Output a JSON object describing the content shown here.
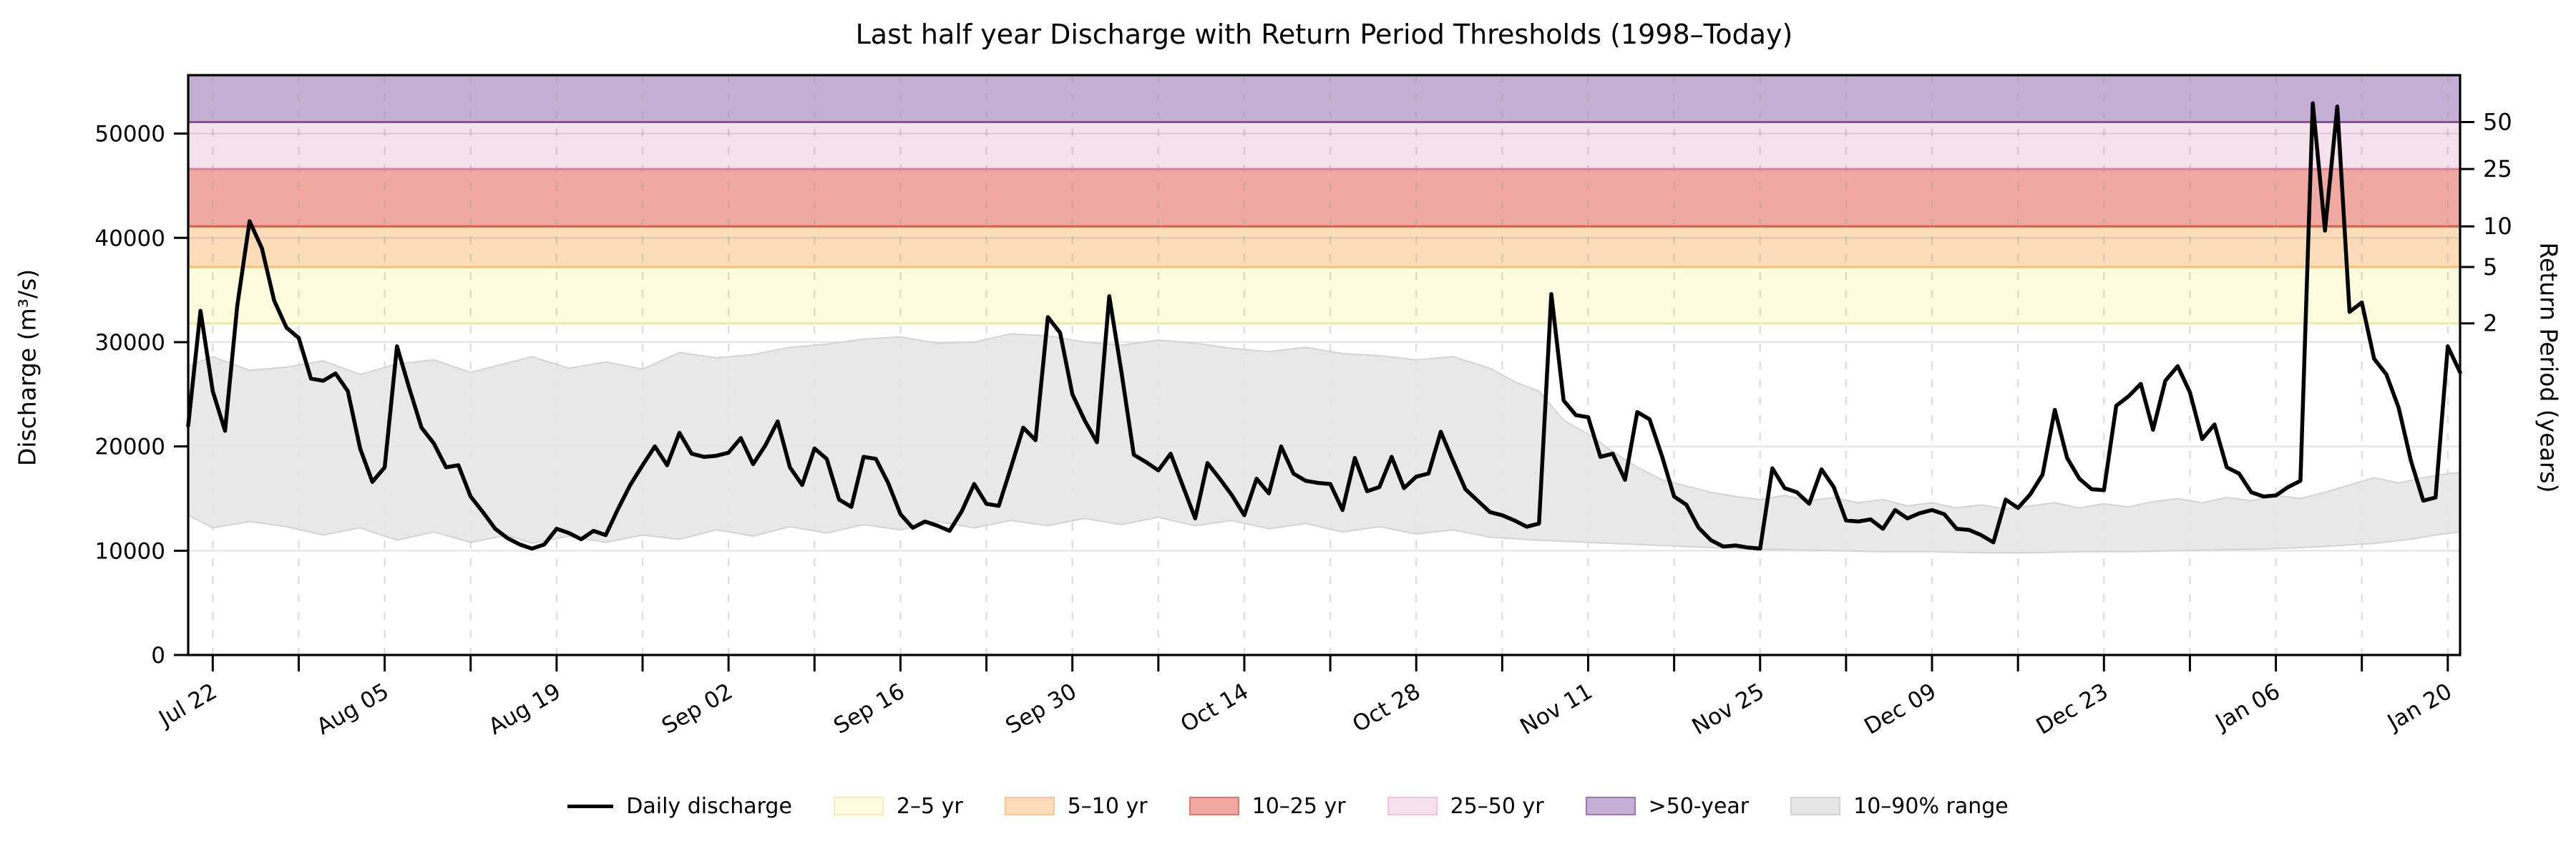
{
  "title": "Last half year Discharge with Return Period Thresholds (1998–Today)",
  "axes": {
    "ylabel": "Discharge (m³/s)",
    "y2label": "Return Period (years)",
    "ytick_labels": [
      "0",
      "10000",
      "20000",
      "30000",
      "40000",
      "50000"
    ],
    "y2tick_labels": [
      "2",
      "5",
      "10",
      "25",
      "50"
    ],
    "xtick_labels": [
      "Jul 22",
      "Aug 05",
      "Aug 19",
      "Sep 02",
      "Sep 16",
      "Sep 30",
      "Oct 14",
      "Oct 28",
      "Nov 11",
      "Nov 25",
      "Dec 09",
      "Dec 23",
      "Jan 06",
      "Jan 20"
    ]
  },
  "chart_data": {
    "type": "line",
    "title": "Last half year Discharge with Return Period Thresholds (1998–Today)",
    "xlabel": "",
    "ylabel": "Discharge (m³/s)",
    "y2label": "Return Period (years)",
    "ylim": [
      0,
      55600
    ],
    "grid": true,
    "n_days": 186,
    "x_start_date": "Jul 20",
    "x_end_date": "Jan 21",
    "yticks": [
      0,
      10000,
      20000,
      30000,
      40000,
      50000
    ],
    "xticks": [
      {
        "label": "Jul 22",
        "day": 2
      },
      {
        "label": "Aug 05",
        "day": 16
      },
      {
        "label": "Aug 19",
        "day": 30
      },
      {
        "label": "Sep 02",
        "day": 44
      },
      {
        "label": "Sep 16",
        "day": 58
      },
      {
        "label": "Sep 30",
        "day": 72
      },
      {
        "label": "Oct 14",
        "day": 86
      },
      {
        "label": "Oct 28",
        "day": 100
      },
      {
        "label": "Nov 11",
        "day": 114
      },
      {
        "label": "Nov 25",
        "day": 128
      },
      {
        "label": "Dec 09",
        "day": 142
      },
      {
        "label": "Dec 23",
        "day": 156
      },
      {
        "label": "Jan 06",
        "day": 170
      },
      {
        "label": "Jan 20",
        "day": 184
      }
    ],
    "minor_tick_interval_days": 7,
    "return_period_thresholds": {
      "2yr": 31800,
      "5yr": 37200,
      "10yr": 41100,
      "25yr": 46600,
      "50yr": 51100
    },
    "y2ticks": [
      {
        "label": "2",
        "value": 31800
      },
      {
        "label": "5",
        "value": 37200
      },
      {
        "label": "10",
        "value": 41100
      },
      {
        "label": "25",
        "value": 46600
      },
      {
        "label": "50",
        "value": 51100
      }
    ],
    "bands": [
      {
        "label": "2–5 yr",
        "from": 31800,
        "to": 37200,
        "fill": "#fdfbdd",
        "line": "#eee8aa"
      },
      {
        "label": "5–10 yr",
        "from": 37200,
        "to": 41100,
        "fill": "#fbdcb9",
        "line": "#f7bc72"
      },
      {
        "label": "10–25 yr",
        "from": 41100,
        "to": 46600,
        "fill": "#f0a8a2",
        "line": "#e45a3f"
      },
      {
        "label": "25–50 yr",
        "from": 46600,
        "to": 51100,
        "fill": "#f5e0ee",
        "line": "#de7f99"
      },
      {
        "label": ">50-year",
        "from": 51100,
        "to": 55600,
        "fill": "#c5aed3",
        "line": "#8d4e9d"
      }
    ],
    "percentile_band": {
      "label": "10–90% range",
      "fill": "#e5e5e5",
      "edge": "#d4d4d4",
      "upper_knots": [
        [
          0,
          27700
        ],
        [
          2,
          28600
        ],
        [
          5,
          27300
        ],
        [
          8,
          27600
        ],
        [
          11,
          28200
        ],
        [
          14,
          26900
        ],
        [
          17,
          27900
        ],
        [
          20,
          28300
        ],
        [
          23,
          27100
        ],
        [
          26,
          28000
        ],
        [
          28,
          28600
        ],
        [
          31,
          27500
        ],
        [
          34,
          28100
        ],
        [
          37,
          27400
        ],
        [
          40,
          29000
        ],
        [
          43,
          28500
        ],
        [
          46,
          28800
        ],
        [
          49,
          29500
        ],
        [
          52,
          29800
        ],
        [
          55,
          30300
        ],
        [
          58,
          30500
        ],
        [
          61,
          29900
        ],
        [
          64,
          30000
        ],
        [
          67,
          30800
        ],
        [
          70,
          30600
        ],
        [
          73,
          30000
        ],
        [
          76,
          29700
        ],
        [
          79,
          30200
        ],
        [
          82,
          29900
        ],
        [
          85,
          29400
        ],
        [
          88,
          29100
        ],
        [
          91,
          29500
        ],
        [
          94,
          28900
        ],
        [
          97,
          28700
        ],
        [
          100,
          28300
        ],
        [
          103,
          28600
        ],
        [
          106,
          27500
        ],
        [
          108,
          26200
        ],
        [
          110,
          25300
        ],
        [
          112,
          22500
        ],
        [
          114,
          21200
        ],
        [
          116,
          19500
        ],
        [
          118,
          18000
        ],
        [
          120,
          16800
        ],
        [
          122,
          16200
        ],
        [
          124,
          15600
        ],
        [
          126,
          15200
        ],
        [
          128,
          14900
        ],
        [
          130,
          15300
        ],
        [
          132,
          14800
        ],
        [
          134,
          15100
        ],
        [
          136,
          14600
        ],
        [
          138,
          14900
        ],
        [
          140,
          14300
        ],
        [
          142,
          14600
        ],
        [
          144,
          14100
        ],
        [
          146,
          14400
        ],
        [
          148,
          14000
        ],
        [
          150,
          14300
        ],
        [
          152,
          14600
        ],
        [
          154,
          14100
        ],
        [
          156,
          14500
        ],
        [
          158,
          14200
        ],
        [
          160,
          14700
        ],
        [
          162,
          15000
        ],
        [
          164,
          14600
        ],
        [
          166,
          15100
        ],
        [
          168,
          14800
        ],
        [
          170,
          15300
        ],
        [
          172,
          15000
        ],
        [
          174,
          15600
        ],
        [
          176,
          16300
        ],
        [
          178,
          17000
        ],
        [
          180,
          16500
        ],
        [
          182,
          17000
        ],
        [
          184,
          17400
        ],
        [
          185,
          17500
        ]
      ],
      "lower_knots": [
        [
          0,
          13400
        ],
        [
          2,
          12200
        ],
        [
          5,
          12800
        ],
        [
          8,
          12300
        ],
        [
          11,
          11500
        ],
        [
          14,
          12200
        ],
        [
          17,
          11000
        ],
        [
          20,
          11800
        ],
        [
          23,
          10800
        ],
        [
          26,
          11500
        ],
        [
          28,
          10700
        ],
        [
          31,
          11400
        ],
        [
          34,
          10800
        ],
        [
          37,
          11500
        ],
        [
          40,
          11100
        ],
        [
          43,
          12000
        ],
        [
          46,
          11400
        ],
        [
          49,
          12300
        ],
        [
          52,
          11700
        ],
        [
          55,
          12500
        ],
        [
          58,
          12000
        ],
        [
          61,
          12800
        ],
        [
          64,
          12200
        ],
        [
          67,
          12900
        ],
        [
          70,
          12400
        ],
        [
          73,
          13100
        ],
        [
          76,
          12500
        ],
        [
          79,
          13200
        ],
        [
          82,
          12400
        ],
        [
          85,
          12900
        ],
        [
          88,
          12100
        ],
        [
          91,
          12600
        ],
        [
          94,
          11800
        ],
        [
          97,
          12300
        ],
        [
          100,
          11600
        ],
        [
          103,
          12000
        ],
        [
          106,
          11300
        ],
        [
          110,
          11000
        ],
        [
          114,
          10800
        ],
        [
          118,
          10600
        ],
        [
          122,
          10400
        ],
        [
          126,
          10200
        ],
        [
          130,
          10100
        ],
        [
          134,
          10000
        ],
        [
          138,
          9900
        ],
        [
          142,
          9900
        ],
        [
          146,
          9800
        ],
        [
          150,
          9800
        ],
        [
          154,
          9900
        ],
        [
          158,
          9900
        ],
        [
          162,
          10000
        ],
        [
          166,
          10100
        ],
        [
          170,
          10200
        ],
        [
          174,
          10400
        ],
        [
          178,
          10700
        ],
        [
          181,
          11100
        ],
        [
          183,
          11500
        ],
        [
          185,
          11800
        ]
      ]
    },
    "series": [
      {
        "name": "Daily discharge",
        "color": "#000000",
        "start_date": "Jul 20",
        "cadence": "daily",
        "values": [
          22000,
          33000,
          25300,
          21500,
          33500,
          41600,
          39000,
          34000,
          31400,
          30400,
          26500,
          26300,
          27000,
          25300,
          19800,
          16600,
          18000,
          29600,
          25600,
          21800,
          20300,
          18000,
          18200,
          15200,
          13700,
          12100,
          11200,
          10600,
          10200,
          10600,
          12100,
          11700,
          11100,
          11900,
          11500,
          14000,
          16300,
          18200,
          20000,
          18200,
          21300,
          19300,
          19000,
          19100,
          19400,
          20800,
          18300,
          20100,
          22400,
          18000,
          16300,
          19800,
          18800,
          14900,
          14200,
          19000,
          18800,
          16500,
          13500,
          12200,
          12800,
          12400,
          11900,
          13800,
          16400,
          14500,
          14300,
          18000,
          21800,
          20600,
          32400,
          30900,
          25000,
          22500,
          20400,
          34400,
          27100,
          19200,
          18500,
          17700,
          19300,
          16200,
          13100,
          18400,
          16900,
          15300,
          13400,
          16900,
          15500,
          20000,
          17400,
          16700,
          16500,
          16400,
          13900,
          18900,
          15700,
          16100,
          19000,
          16000,
          17100,
          17400,
          21400,
          18600,
          15900,
          14800,
          13700,
          13400,
          12900,
          12300,
          12600,
          34600,
          24400,
          23000,
          22800,
          19000,
          19300,
          16800,
          23300,
          22600,
          19100,
          15200,
          14400,
          12200,
          11000,
          10400,
          10500,
          10300,
          10200,
          17900,
          16000,
          15600,
          14500,
          17800,
          16100,
          12900,
          12800,
          13000,
          12100,
          13900,
          13100,
          13600,
          13900,
          13500,
          12100,
          12000,
          11500,
          10800,
          14900,
          14100,
          15400,
          17300,
          23500,
          18900,
          16900,
          15900,
          15800,
          23900,
          24800,
          26000,
          21600,
          26300,
          27700,
          25200,
          20700,
          22100,
          18000,
          17400,
          15600,
          15200,
          15300,
          16100,
          16700,
          52900,
          40700,
          52600,
          32900,
          33800,
          28400,
          26900,
          23700,
          18600,
          14800,
          15100,
          29600,
          27100
        ]
      }
    ],
    "style": {
      "series_line_width": 5.5,
      "grid_color": "#8c8c8c",
      "dashed_grid_color": "#9a9a9a",
      "spine_color": "#000000",
      "background": "#ffffff"
    },
    "legend_position": "bottom-center"
  },
  "legend": {
    "items": [
      {
        "type": "line",
        "label": "Daily discharge",
        "fill": "#000000",
        "edge": "#000000"
      },
      {
        "type": "patch",
        "label": "2–5 yr",
        "fill": "#fdfbdd",
        "edge": "#f2edba"
      },
      {
        "type": "patch",
        "label": "5–10 yr",
        "fill": "#fbdcb9",
        "edge": "#f8c695"
      },
      {
        "type": "patch",
        "label": "10–25 yr",
        "fill": "#f0a8a2",
        "edge": "#e8766a"
      },
      {
        "type": "patch",
        "label": "25–50 yr",
        "fill": "#f5e0ee",
        "edge": "#f0c2dd"
      },
      {
        "type": "patch",
        "label": ">50-year",
        "fill": "#c5aed3",
        "edge": "#9c77b4"
      },
      {
        "type": "patch",
        "label": "10–90% range",
        "fill": "#e5e5e5",
        "edge": "#d4d4d4"
      }
    ]
  }
}
